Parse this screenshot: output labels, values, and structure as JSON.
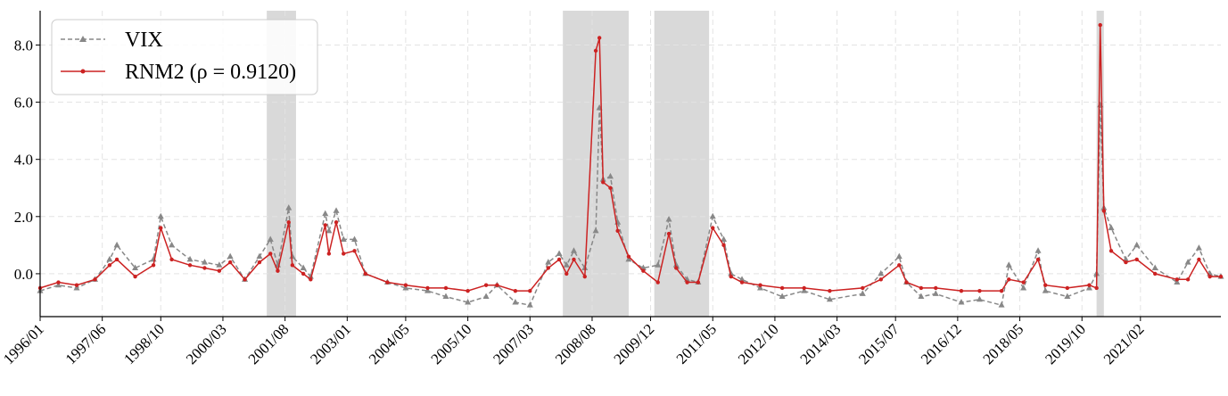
{
  "chart_data": {
    "type": "line",
    "title": "",
    "xlabel": "",
    "ylabel": "",
    "ylim": [
      -1.5,
      9.2
    ],
    "yticks": [
      0.0,
      2.0,
      4.0,
      6.0,
      8.0
    ],
    "ytick_labels": [
      "0.0",
      "2.0",
      "4.0",
      "6.0",
      "8.0"
    ],
    "x_range": [
      "1996/01",
      "2022/12"
    ],
    "xtick_labels": [
      "1996/01",
      "1997/06",
      "1998/10",
      "2000/03",
      "2001/08",
      "2003/01",
      "2004/05",
      "2005/10",
      "2007/03",
      "2008/08",
      "2009/12",
      "2011/05",
      "2012/10",
      "2014/03",
      "2015/07",
      "2016/12",
      "2018/05",
      "2019/10",
      "2021/02"
    ],
    "grid": true,
    "legend_position": "top-left",
    "shaded_periods": [
      [
        "2001/03",
        "2001/11"
      ],
      [
        "2007/12",
        "2009/06"
      ],
      [
        "2010/01",
        "2011/04"
      ],
      [
        "2020/02",
        "2020/04"
      ]
    ],
    "series": [
      {
        "name": "VIX",
        "color": "#888888",
        "linestyle": "dashed",
        "marker": "triangle",
        "x": [
          "1996/01",
          "1996/06",
          "1996/11",
          "1997/04",
          "1997/08",
          "1997/10",
          "1998/03",
          "1998/08",
          "1998/10",
          "1999/01",
          "1999/06",
          "1999/10",
          "2000/02",
          "2000/05",
          "2000/09",
          "2001/01",
          "2001/04",
          "2001/06",
          "2001/09",
          "2001/10",
          "2002/01",
          "2002/03",
          "2002/07",
          "2002/08",
          "2002/10",
          "2002/12",
          "2003/03",
          "2003/06",
          "2003/12",
          "2004/05",
          "2004/11",
          "2005/04",
          "2005/10",
          "2006/03",
          "2006/06",
          "2006/11",
          "2007/03",
          "2007/08",
          "2007/11",
          "2008/01",
          "2008/03",
          "2008/06",
          "2008/09",
          "2008/10",
          "2008/11",
          "2009/01",
          "2009/03",
          "2009/06",
          "2009/10",
          "2010/02",
          "2010/05",
          "2010/07",
          "2010/10",
          "2011/01",
          "2011/05",
          "2011/08",
          "2011/10",
          "2012/01",
          "2012/06",
          "2012/12",
          "2013/06",
          "2014/01",
          "2014/10",
          "2015/03",
          "2015/08",
          "2015/10",
          "2016/02",
          "2016/06",
          "2017/01",
          "2017/06",
          "2017/12",
          "2018/02",
          "2018/06",
          "2018/10",
          "2018/12",
          "2019/06",
          "2019/12",
          "2020/02",
          "2020/03",
          "2020/04",
          "2020/06",
          "2020/10",
          "2021/01",
          "2021/06",
          "2021/12",
          "2022/03",
          "2022/06",
          "2022/09",
          "2022/12"
        ],
        "values": [
          -0.6,
          -0.4,
          -0.5,
          -0.2,
          0.5,
          1.0,
          0.2,
          0.5,
          2.0,
          1.0,
          0.5,
          0.4,
          0.3,
          0.6,
          -0.2,
          0.6,
          1.2,
          0.3,
          2.3,
          0.6,
          0.2,
          -0.1,
          2.1,
          1.5,
          2.2,
          1.2,
          1.2,
          0.0,
          -0.3,
          -0.5,
          -0.6,
          -0.8,
          -1.0,
          -0.8,
          -0.4,
          -1.0,
          -1.1,
          0.4,
          0.7,
          0.3,
          0.8,
          0.2,
          1.5,
          5.8,
          3.3,
          3.4,
          1.8,
          0.5,
          0.2,
          0.3,
          1.9,
          0.3,
          -0.2,
          -0.3,
          2.0,
          1.2,
          0.0,
          -0.2,
          -0.5,
          -0.8,
          -0.6,
          -0.9,
          -0.7,
          0.0,
          0.6,
          -0.3,
          -0.8,
          -0.7,
          -1.0,
          -0.9,
          -1.1,
          0.3,
          -0.5,
          0.8,
          -0.6,
          -0.8,
          -0.5,
          0.0,
          5.9,
          2.3,
          1.6,
          0.5,
          1.0,
          0.2,
          -0.3,
          0.4,
          0.9,
          0.0,
          -0.1
        ]
      },
      {
        "name": "RNM2 (ρ = 0.9120)",
        "color": "#cc2222",
        "linestyle": "solid",
        "marker": "star",
        "x": [
          "1996/01",
          "1996/06",
          "1996/11",
          "1997/04",
          "1997/08",
          "1997/10",
          "1998/03",
          "1998/08",
          "1998/10",
          "1999/01",
          "1999/06",
          "1999/10",
          "2000/02",
          "2000/05",
          "2000/09",
          "2001/01",
          "2001/04",
          "2001/06",
          "2001/09",
          "2001/10",
          "2002/01",
          "2002/03",
          "2002/07",
          "2002/08",
          "2002/10",
          "2002/12",
          "2003/03",
          "2003/06",
          "2003/12",
          "2004/05",
          "2004/11",
          "2005/04",
          "2005/10",
          "2006/03",
          "2006/06",
          "2006/11",
          "2007/03",
          "2007/08",
          "2007/11",
          "2008/01",
          "2008/03",
          "2008/06",
          "2008/09",
          "2008/10",
          "2008/11",
          "2009/01",
          "2009/03",
          "2009/06",
          "2009/10",
          "2010/02",
          "2010/05",
          "2010/07",
          "2010/10",
          "2011/01",
          "2011/05",
          "2011/08",
          "2011/10",
          "2012/01",
          "2012/06",
          "2012/12",
          "2013/06",
          "2014/01",
          "2014/10",
          "2015/03",
          "2015/08",
          "2015/10",
          "2016/02",
          "2016/06",
          "2017/01",
          "2017/06",
          "2017/12",
          "2018/02",
          "2018/06",
          "2018/10",
          "2018/12",
          "2019/06",
          "2019/12",
          "2020/02",
          "2020/03",
          "2020/04",
          "2020/06",
          "2020/10",
          "2021/01",
          "2021/06",
          "2021/12",
          "2022/03",
          "2022/06",
          "2022/09",
          "2022/12"
        ],
        "values": [
          -0.5,
          -0.3,
          -0.4,
          -0.2,
          0.3,
          0.5,
          -0.1,
          0.3,
          1.6,
          0.5,
          0.3,
          0.2,
          0.1,
          0.4,
          -0.2,
          0.4,
          0.7,
          0.1,
          1.8,
          0.3,
          0.0,
          -0.2,
          1.7,
          0.7,
          1.8,
          0.7,
          0.8,
          0.0,
          -0.3,
          -0.4,
          -0.5,
          -0.5,
          -0.6,
          -0.4,
          -0.4,
          -0.6,
          -0.6,
          0.2,
          0.5,
          0.0,
          0.5,
          -0.1,
          7.8,
          8.25,
          3.2,
          3.0,
          1.5,
          0.6,
          0.1,
          -0.3,
          1.4,
          0.2,
          -0.3,
          -0.3,
          1.6,
          1.0,
          -0.1,
          -0.3,
          -0.4,
          -0.5,
          -0.5,
          -0.6,
          -0.5,
          -0.2,
          0.3,
          -0.3,
          -0.5,
          -0.5,
          -0.6,
          -0.6,
          -0.6,
          -0.2,
          -0.3,
          0.5,
          -0.4,
          -0.5,
          -0.4,
          -0.5,
          8.7,
          2.2,
          0.8,
          0.4,
          0.5,
          0.0,
          -0.2,
          -0.2,
          0.5,
          -0.1,
          -0.1
        ]
      }
    ]
  }
}
